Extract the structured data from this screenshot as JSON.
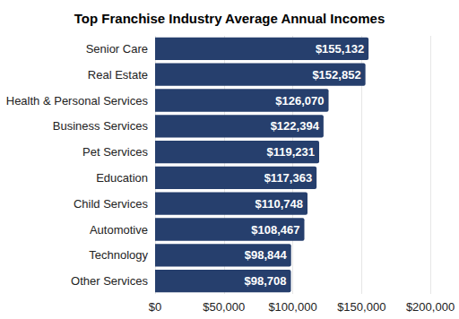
{
  "chart_data": {
    "type": "bar",
    "orientation": "horizontal",
    "title": "Top Franchise Industry Average Annual Incomes",
    "categories": [
      "Senior Care",
      "Real Estate",
      "Health & Personal Services",
      "Business Services",
      "Pet Services",
      "Education",
      "Child Services",
      "Automotive",
      "Technology",
      "Other Services"
    ],
    "values": [
      155132,
      152852,
      126070,
      122394,
      119231,
      117363,
      110748,
      108467,
      98844,
      98708
    ],
    "value_labels": [
      "$155,132",
      "$152,852",
      "$126,070",
      "$122,394",
      "$119,231",
      "$117,363",
      "$110,748",
      "$108,467",
      "$98,844",
      "$98,708"
    ],
    "color": "#263f6d",
    "xlim": [
      0,
      200000
    ],
    "xticks": [
      {
        "value": 0,
        "label": "$0"
      },
      {
        "value": 50000,
        "label": "$50,000"
      },
      {
        "value": 100000,
        "label": "$100,000"
      },
      {
        "value": 150000,
        "label": "$150,000"
      },
      {
        "value": 200000,
        "label": "$200,000"
      }
    ],
    "grid": true,
    "data_labels": true
  }
}
